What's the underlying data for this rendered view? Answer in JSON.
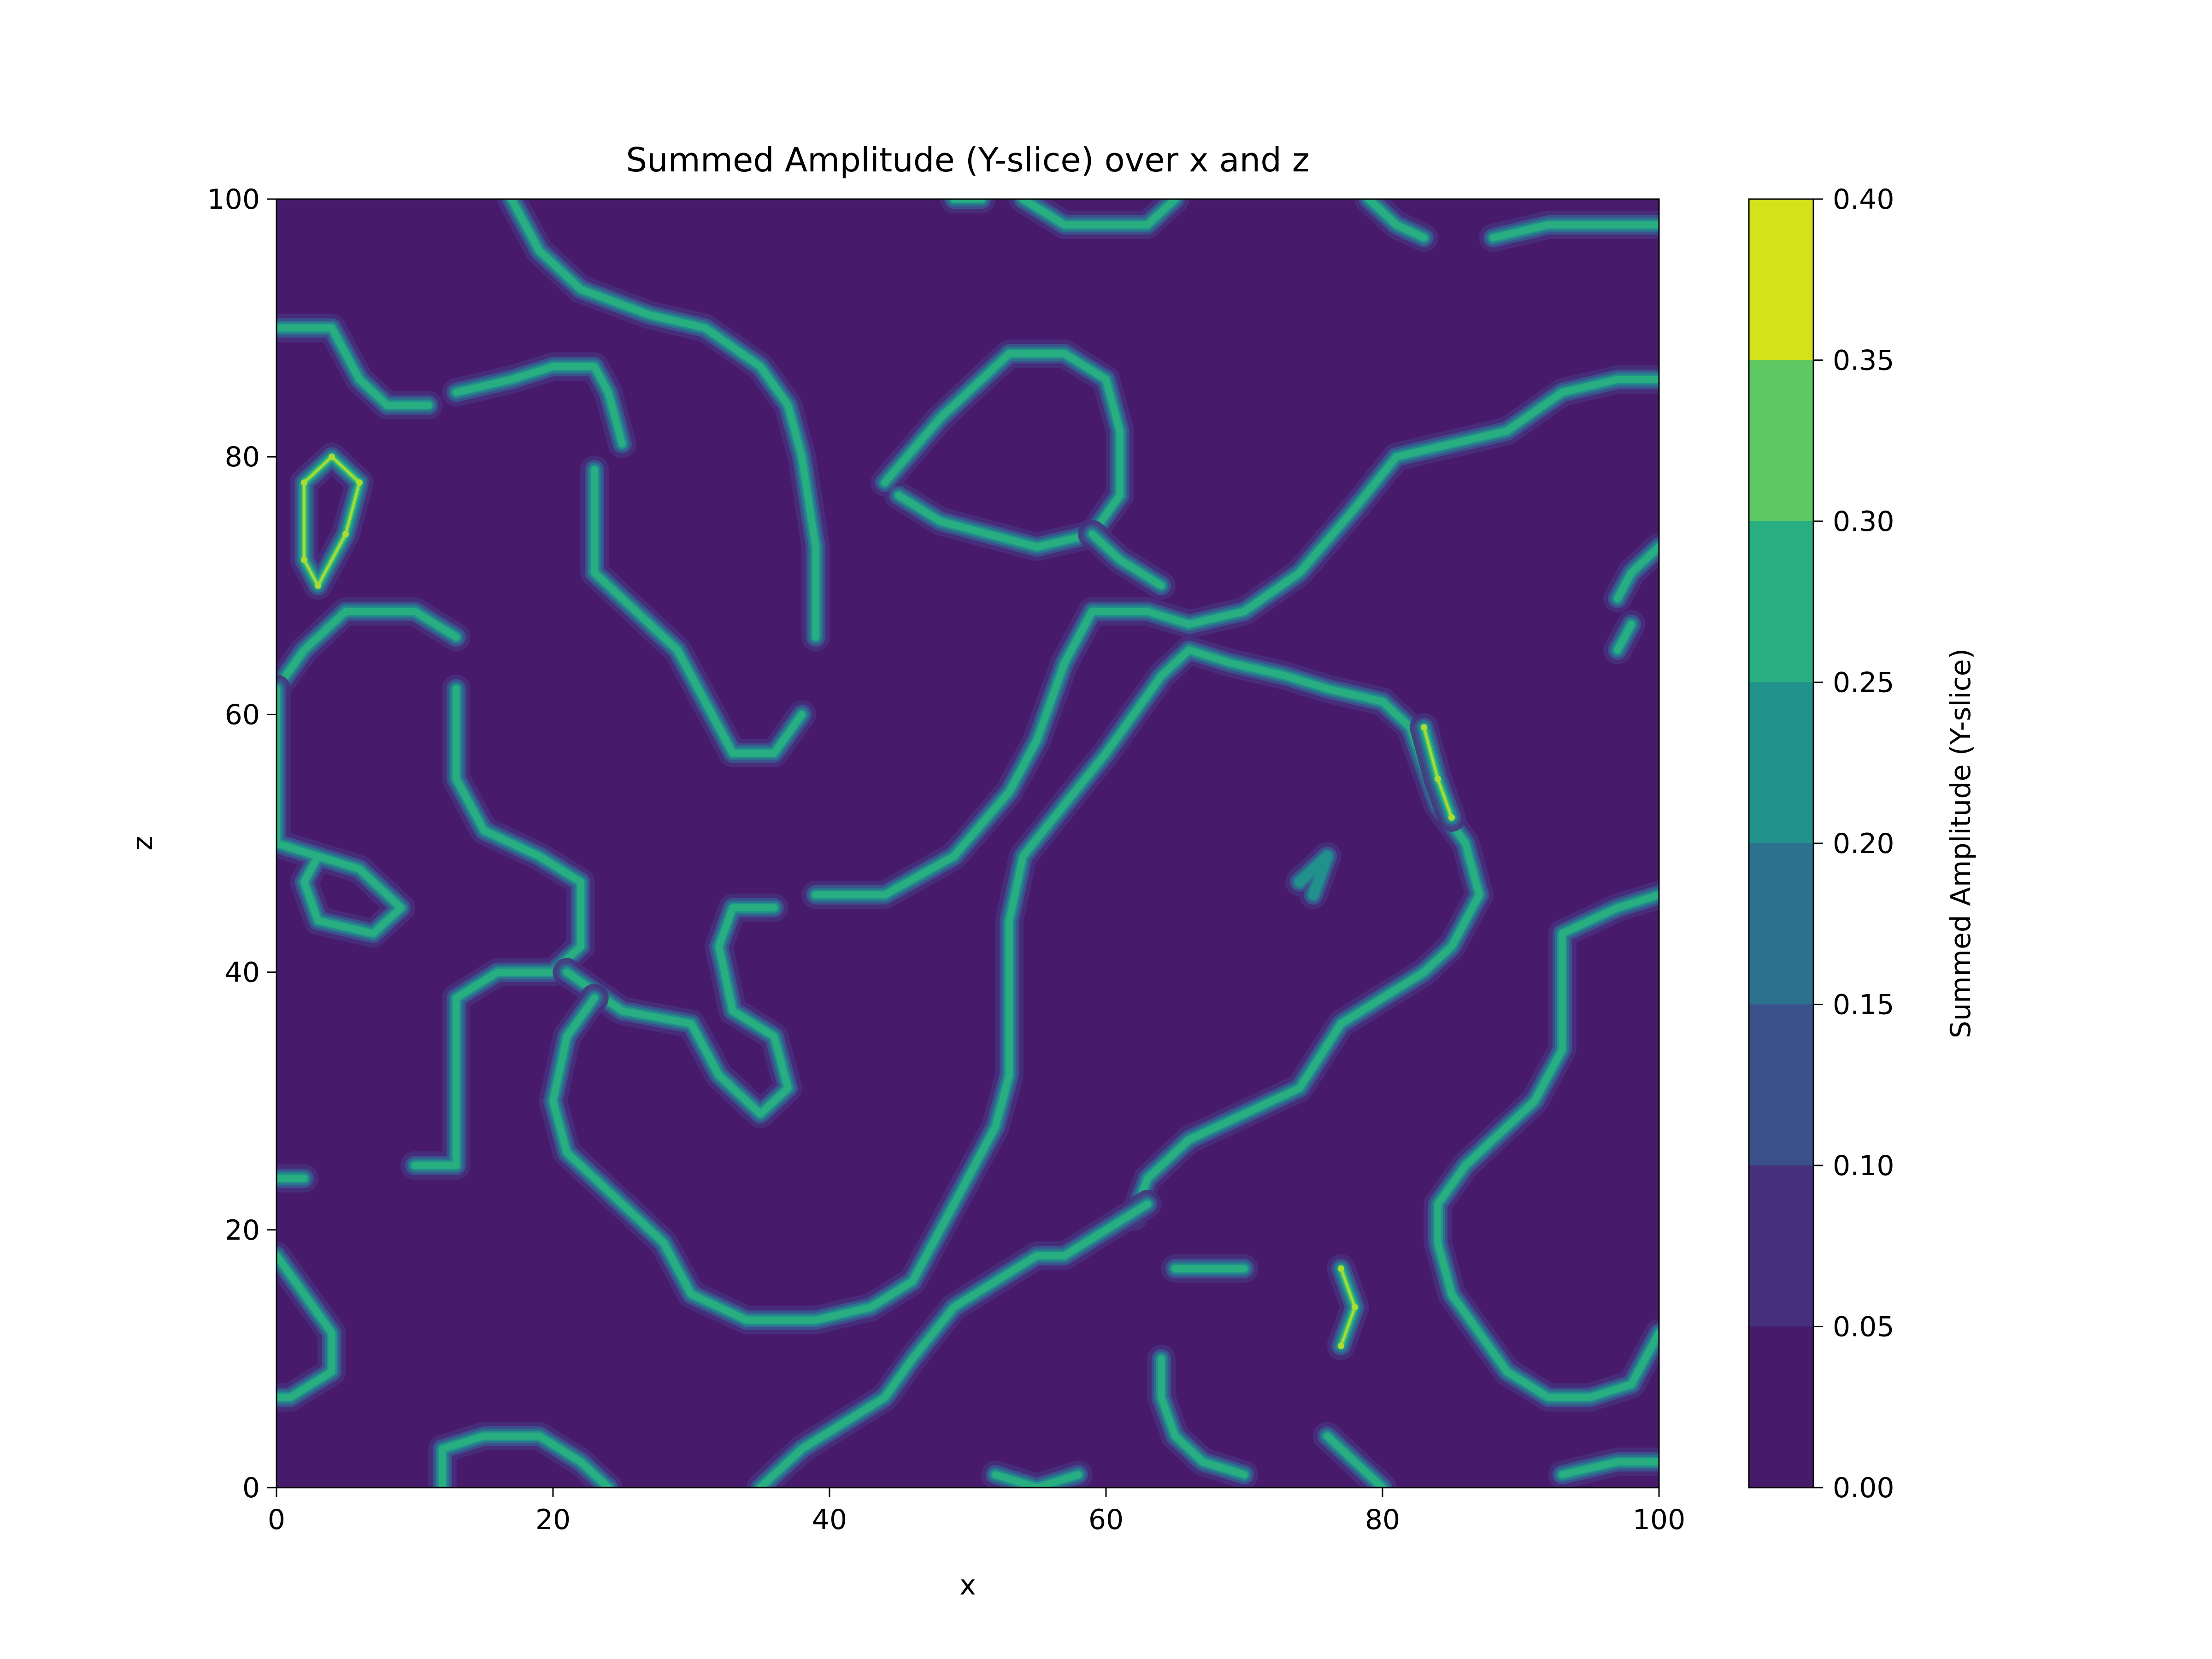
{
  "chart_data": {
    "type": "heatmap",
    "subtype": "filled-contour",
    "title": "Summed Amplitude (Y-slice) over x and z",
    "xlabel": "x",
    "ylabel": "z",
    "xlim": [
      0,
      100
    ],
    "ylim": [
      0,
      100
    ],
    "x_ticks": [
      0,
      20,
      40,
      60,
      80,
      100
    ],
    "y_ticks": [
      0,
      20,
      40,
      60,
      80,
      100
    ],
    "grid": false,
    "colormap": "viridis",
    "colorbar": {
      "label": "Summed Amplitude (Y-slice)",
      "levels": [
        0.0,
        0.05,
        0.1,
        0.15,
        0.2,
        0.25,
        0.3,
        0.35,
        0.4
      ],
      "tick_labels": [
        "0.00",
        "0.05",
        "0.10",
        "0.15",
        "0.20",
        "0.25",
        "0.30",
        "0.35",
        "0.40"
      ],
      "colors": [
        "#481a6c",
        "#46307e",
        "#3b518b",
        "#2c718e",
        "#21918c",
        "#28ae80",
        "#5ec962",
        "#addc30"
      ]
    },
    "background_color": "#481a6c",
    "filaments": [
      {
        "points": [
          [
            17,
            100
          ],
          [
            19,
            96
          ],
          [
            22,
            93
          ],
          [
            27,
            91
          ],
          [
            31,
            90
          ],
          [
            35,
            87
          ],
          [
            37,
            84
          ],
          [
            38,
            80
          ],
          [
            39,
            73
          ],
          [
            39,
            66
          ]
        ]
      },
      {
        "points": [
          [
            0,
            90
          ],
          [
            4,
            90
          ],
          [
            5,
            88
          ],
          [
            6,
            86
          ],
          [
            8,
            84
          ],
          [
            11,
            84
          ]
        ]
      },
      {
        "points": [
          [
            13,
            85
          ],
          [
            17,
            86
          ],
          [
            20,
            87
          ],
          [
            23,
            87
          ],
          [
            24,
            85
          ],
          [
            25,
            81
          ]
        ]
      },
      {
        "points": [
          [
            2,
            72
          ],
          [
            3,
            70
          ],
          [
            5,
            74
          ],
          [
            6,
            78
          ],
          [
            4,
            80
          ],
          [
            2,
            78
          ],
          [
            2,
            72
          ]
        ],
        "peak": 0.38
      },
      {
        "points": [
          [
            0,
            62
          ],
          [
            2,
            65
          ],
          [
            5,
            68
          ],
          [
            10,
            68
          ],
          [
            13,
            66
          ]
        ]
      },
      {
        "points": [
          [
            23,
            79
          ],
          [
            23,
            76
          ],
          [
            23,
            71
          ],
          [
            26,
            68
          ],
          [
            29,
            65
          ],
          [
            31,
            61
          ],
          [
            33,
            57
          ],
          [
            36,
            57
          ],
          [
            38,
            60
          ]
        ]
      },
      {
        "points": [
          [
            44,
            78
          ],
          [
            48,
            83
          ],
          [
            53,
            88
          ],
          [
            57,
            88
          ],
          [
            60,
            86
          ],
          [
            61,
            82
          ],
          [
            61,
            77
          ],
          [
            59,
            74
          ],
          [
            55,
            73
          ],
          [
            48,
            75
          ],
          [
            45,
            77
          ]
        ]
      },
      {
        "points": [
          [
            39,
            46
          ],
          [
            44,
            46
          ],
          [
            49,
            49
          ],
          [
            53,
            54
          ],
          [
            55,
            58
          ],
          [
            57,
            64
          ],
          [
            59,
            68
          ],
          [
            63,
            68
          ],
          [
            66,
            67
          ],
          [
            70,
            68
          ],
          [
            74,
            71
          ],
          [
            78,
            76
          ],
          [
            81,
            80
          ],
          [
            85,
            81
          ],
          [
            89,
            82
          ],
          [
            93,
            85
          ],
          [
            97,
            86
          ],
          [
            100,
            86
          ]
        ]
      },
      {
        "points": [
          [
            64,
            70
          ],
          [
            61,
            72
          ],
          [
            59,
            74
          ]
        ]
      },
      {
        "points": [
          [
            13,
            62
          ],
          [
            13,
            55
          ],
          [
            15,
            51
          ],
          [
            19,
            49
          ],
          [
            22,
            47
          ],
          [
            22,
            42
          ],
          [
            20,
            40
          ],
          [
            16,
            40
          ],
          [
            13,
            38
          ],
          [
            13,
            32
          ],
          [
            13,
            25
          ],
          [
            10,
            25
          ]
        ]
      },
      {
        "points": [
          [
            0,
            62
          ],
          [
            0,
            55
          ],
          [
            0,
            50
          ],
          [
            3,
            49
          ],
          [
            6,
            48
          ],
          [
            9,
            45
          ],
          [
            7,
            43
          ],
          [
            3,
            44
          ],
          [
            2,
            47
          ],
          [
            3,
            49
          ]
        ]
      },
      {
        "points": [
          [
            21,
            40
          ],
          [
            25,
            37
          ],
          [
            30,
            36
          ],
          [
            32,
            32
          ],
          [
            35,
            29
          ],
          [
            37,
            31
          ],
          [
            36,
            35
          ],
          [
            33,
            37
          ],
          [
            32,
            42
          ],
          [
            33,
            45
          ],
          [
            36,
            45
          ]
        ]
      },
      {
        "points": [
          [
            23,
            38
          ],
          [
            21,
            35
          ],
          [
            20,
            30
          ],
          [
            21,
            26
          ],
          [
            25,
            22
          ],
          [
            28,
            19
          ],
          [
            30,
            15
          ],
          [
            34,
            13
          ],
          [
            39,
            13
          ],
          [
            43,
            14
          ],
          [
            46,
            16
          ],
          [
            48,
            20
          ],
          [
            50,
            24
          ],
          [
            52,
            28
          ],
          [
            53,
            32
          ],
          [
            53,
            38
          ],
          [
            53,
            44
          ],
          [
            54,
            49
          ],
          [
            57,
            53
          ],
          [
            60,
            57
          ],
          [
            62,
            60
          ],
          [
            64,
            63
          ],
          [
            66,
            65
          ],
          [
            69,
            64
          ],
          [
            73,
            63
          ],
          [
            76,
            62
          ],
          [
            80,
            61
          ],
          [
            82,
            59
          ],
          [
            83,
            56
          ],
          [
            84,
            53
          ],
          [
            86,
            50
          ],
          [
            87,
            46
          ],
          [
            85,
            42
          ],
          [
            83,
            40
          ],
          [
            80,
            38
          ],
          [
            77,
            36
          ],
          [
            74,
            31
          ],
          [
            70,
            29
          ],
          [
            66,
            27
          ],
          [
            63,
            24
          ],
          [
            62,
            21
          ]
        ]
      },
      {
        "points": [
          [
            83,
            59
          ],
          [
            84,
            55
          ],
          [
            85,
            52
          ]
        ],
        "peak": 0.38
      },
      {
        "points": [
          [
            74,
            47
          ],
          [
            76,
            49
          ],
          [
            75,
            46
          ]
        ],
        "peak": 0.22
      },
      {
        "points": [
          [
            0,
            24
          ],
          [
            2,
            24
          ]
        ]
      },
      {
        "points": [
          [
            0,
            18
          ],
          [
            2,
            15
          ],
          [
            4,
            12
          ],
          [
            4,
            9
          ],
          [
            1,
            7
          ],
          [
            0,
            7
          ]
        ]
      },
      {
        "points": [
          [
            12,
            0
          ],
          [
            12,
            3
          ],
          [
            15,
            4
          ],
          [
            19,
            4
          ],
          [
            22,
            2
          ],
          [
            24,
            0
          ]
        ]
      },
      {
        "points": [
          [
            35,
            0
          ],
          [
            38,
            3
          ],
          [
            41,
            5
          ],
          [
            44,
            7
          ],
          [
            46,
            10
          ],
          [
            49,
            14
          ],
          [
            52,
            16
          ],
          [
            55,
            18
          ],
          [
            57,
            18
          ],
          [
            60,
            20
          ],
          [
            63,
            22
          ]
        ]
      },
      {
        "points": [
          [
            52,
            1
          ],
          [
            55,
            0
          ],
          [
            58,
            1
          ]
        ]
      },
      {
        "points": [
          [
            65,
            17
          ],
          [
            67,
            17
          ],
          [
            70,
            17
          ]
        ]
      },
      {
        "points": [
          [
            77,
            17
          ],
          [
            78,
            14
          ],
          [
            77,
            11
          ]
        ],
        "peak": 0.38
      },
      {
        "points": [
          [
            64,
            10
          ],
          [
            64,
            7
          ],
          [
            65,
            4
          ],
          [
            67,
            2
          ],
          [
            70,
            1
          ]
        ]
      },
      {
        "points": [
          [
            76,
            4
          ],
          [
            78,
            2
          ],
          [
            80,
            0
          ]
        ]
      },
      {
        "points": [
          [
            100,
            12
          ],
          [
            98,
            8
          ],
          [
            95,
            7
          ],
          [
            92,
            7
          ],
          [
            89,
            9
          ],
          [
            87,
            12
          ],
          [
            85,
            15
          ],
          [
            84,
            19
          ],
          [
            84,
            22
          ],
          [
            86,
            25
          ],
          [
            89,
            28
          ],
          [
            91,
            30
          ],
          [
            93,
            34
          ],
          [
            93,
            38
          ],
          [
            93,
            43
          ],
          [
            97,
            45
          ],
          [
            100,
            46
          ]
        ]
      },
      {
        "points": [
          [
            93,
            1
          ],
          [
            97,
            2
          ],
          [
            100,
            2
          ]
        ]
      },
      {
        "points": [
          [
            97,
            69
          ],
          [
            98,
            71
          ],
          [
            100,
            73
          ]
        ]
      },
      {
        "points": [
          [
            97,
            65
          ],
          [
            98,
            67
          ]
        ]
      },
      {
        "points": [
          [
            54,
            100
          ],
          [
            57,
            98
          ],
          [
            60,
            98
          ],
          [
            63,
            98
          ],
          [
            65,
            100
          ]
        ]
      },
      {
        "points": [
          [
            88,
            97
          ],
          [
            92,
            98
          ],
          [
            96,
            98
          ],
          [
            100,
            98
          ]
        ]
      },
      {
        "points": [
          [
            79,
            100
          ],
          [
            81,
            98
          ],
          [
            83,
            97
          ]
        ]
      },
      {
        "points": [
          [
            49,
            100
          ],
          [
            51,
            100
          ]
        ]
      }
    ]
  }
}
